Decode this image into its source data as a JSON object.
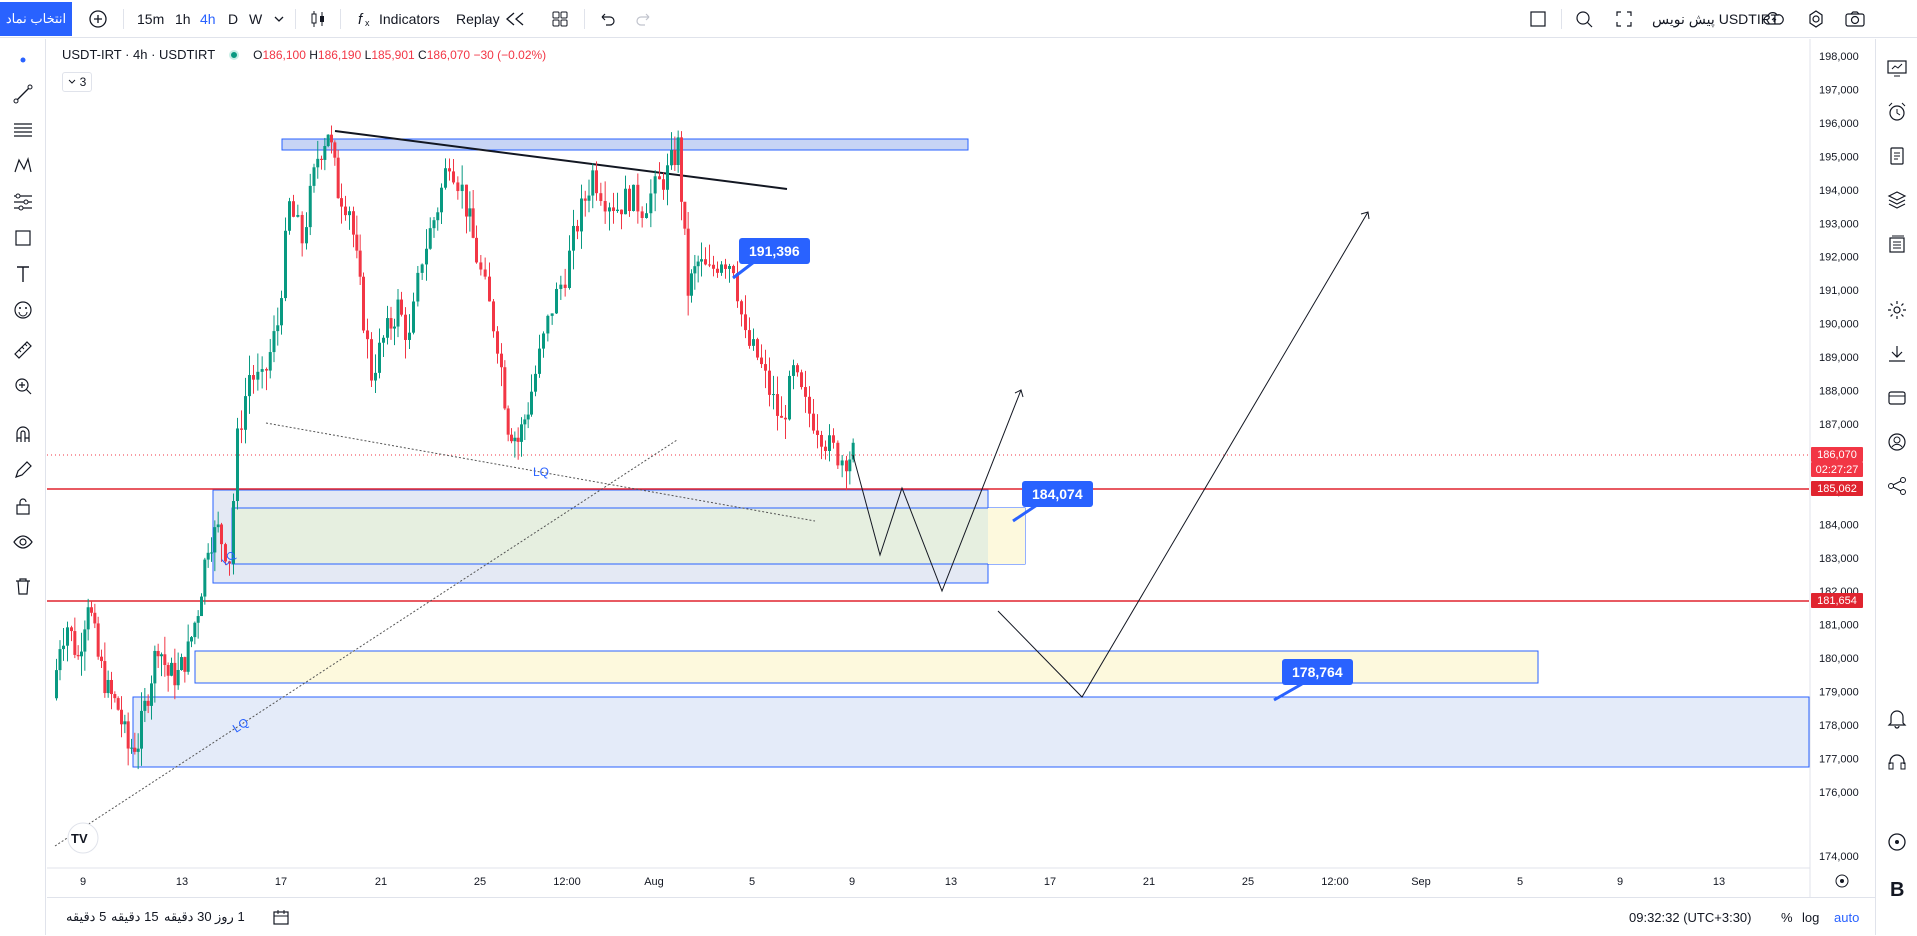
{
  "topbar": {
    "symbol_button": "انتخاب نماد",
    "intervals": [
      "15m",
      "1h",
      "4h",
      "D",
      "W"
    ],
    "active_interval": "4h",
    "indicators_label": "Indicators",
    "replay_label": "Replay",
    "symbol_name": "USDTIRT",
    "symbol_preview": "پیش نویس"
  },
  "legend": {
    "title": "USDT-IRT · 4h · USDTIRT",
    "o_label": "O",
    "o_value": "186,100",
    "h_label": "H",
    "h_value": "186,190",
    "l_label": "L",
    "l_value": "185,901",
    "c_label": "C",
    "c_value": "186,070",
    "change": "−30 (−0.02%)",
    "collapse_count": "3"
  },
  "price_axis": {
    "ticks": [
      "198,000",
      "197,000",
      "196,000",
      "195,000",
      "194,000",
      "193,000",
      "192,000",
      "191,000",
      "190,000",
      "189,000",
      "188,000",
      "187,000",
      "186,000",
      "185,000",
      "184,000",
      "183,000",
      "182,000",
      "181,000",
      "180,000",
      "179,000",
      "178,000",
      "177,000",
      "176,000",
      "174,000"
    ],
    "current_price": "186,070",
    "countdown": "02:27:27",
    "level_1": "185,062",
    "level_2": "181,654",
    "current_color": "#f23645",
    "level_color": "#f23645"
  },
  "time_axis": {
    "ticks": [
      "9",
      "13",
      "17",
      "21",
      "25",
      "12:00",
      "Aug",
      "5",
      "9",
      "13",
      "17",
      "21",
      "25",
      "12:00",
      "Sep",
      "5",
      "9",
      "13"
    ]
  },
  "annotations": {
    "label_191": "191,396",
    "label_184": "184,074",
    "label_178": "178,764",
    "lq_1": "LQ",
    "lq_2": "LQ",
    "lq_3": "LQ"
  },
  "bottombar": {
    "ranges": [
      "5 دقیقه",
      "15 دقیقه",
      "30 دقیقه",
      "1 روز"
    ],
    "clock": "09:32:32 (UTC+3:30)",
    "percent": "%",
    "log": "log",
    "auto": "auto"
  },
  "colors": {
    "up": "#089981",
    "down": "#f23645",
    "accent": "#2962ff"
  },
  "chart_data": {
    "type": "candlestick",
    "title": "USDT-IRT · 4h · USDTIRT",
    "xlabel": "",
    "ylabel": "",
    "ylim": [
      174000,
      198200
    ],
    "horizontal_levels": [
      185062,
      181654
    ],
    "last_close": 186070,
    "trend_path": [
      [
        17,
        195.9
      ],
      [
        18,
        194.3
      ],
      [
        19,
        196.0
      ],
      [
        20,
        190.0
      ],
      [
        21,
        187.8
      ],
      [
        22,
        190.5
      ],
      [
        23,
        193.0
      ],
      [
        24,
        195.0
      ],
      [
        25,
        193.0
      ],
      [
        26,
        189.5
      ],
      [
        27,
        185.0
      ],
      [
        28,
        189.5
      ],
      [
        29,
        193.0
      ],
      [
        30,
        194.8
      ],
      [
        31,
        193.8
      ],
      [
        32,
        195.5
      ],
      [
        33,
        190.5
      ],
      [
        34,
        192.3
      ],
      [
        35,
        190.0
      ],
      [
        36,
        187.5
      ],
      [
        37,
        188.9
      ],
      [
        38,
        186.0
      ]
    ]
  }
}
